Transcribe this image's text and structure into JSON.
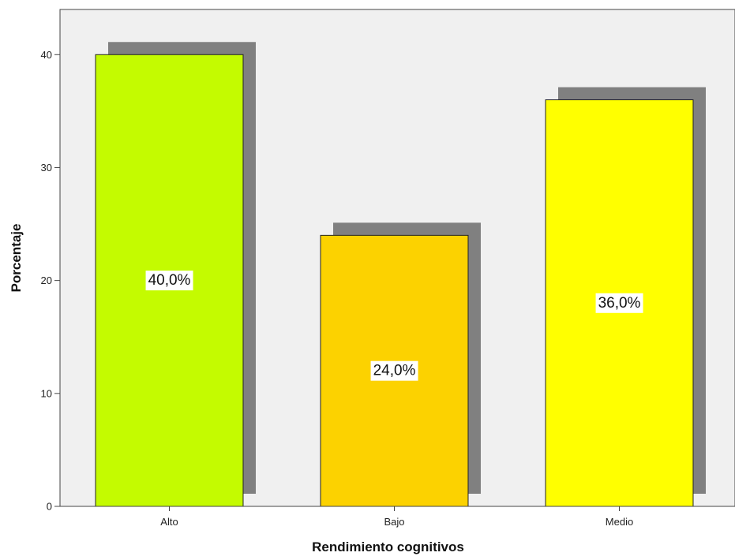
{
  "chart_data": {
    "type": "bar",
    "categories": [
      "Alto",
      "Bajo",
      "Medio"
    ],
    "values": [
      40.0,
      24.0,
      36.0
    ],
    "data_labels": [
      "40,0%",
      "24,0%",
      "36,0%"
    ],
    "title": "",
    "xlabel": "Rendimiento cognitivos",
    "ylabel": "Porcentaje",
    "ylim": [
      0,
      44
    ],
    "yticks": [
      0,
      10,
      20,
      30,
      40
    ],
    "ytick_labels": [
      "0",
      "10",
      "20",
      "30",
      "40"
    ],
    "grid": false,
    "legend": "none",
    "colors": [
      "#c4fb00",
      "#fcd200",
      "#ffff00"
    ],
    "shadow_color": "#808080",
    "plot_background": "#f0f0f0"
  }
}
